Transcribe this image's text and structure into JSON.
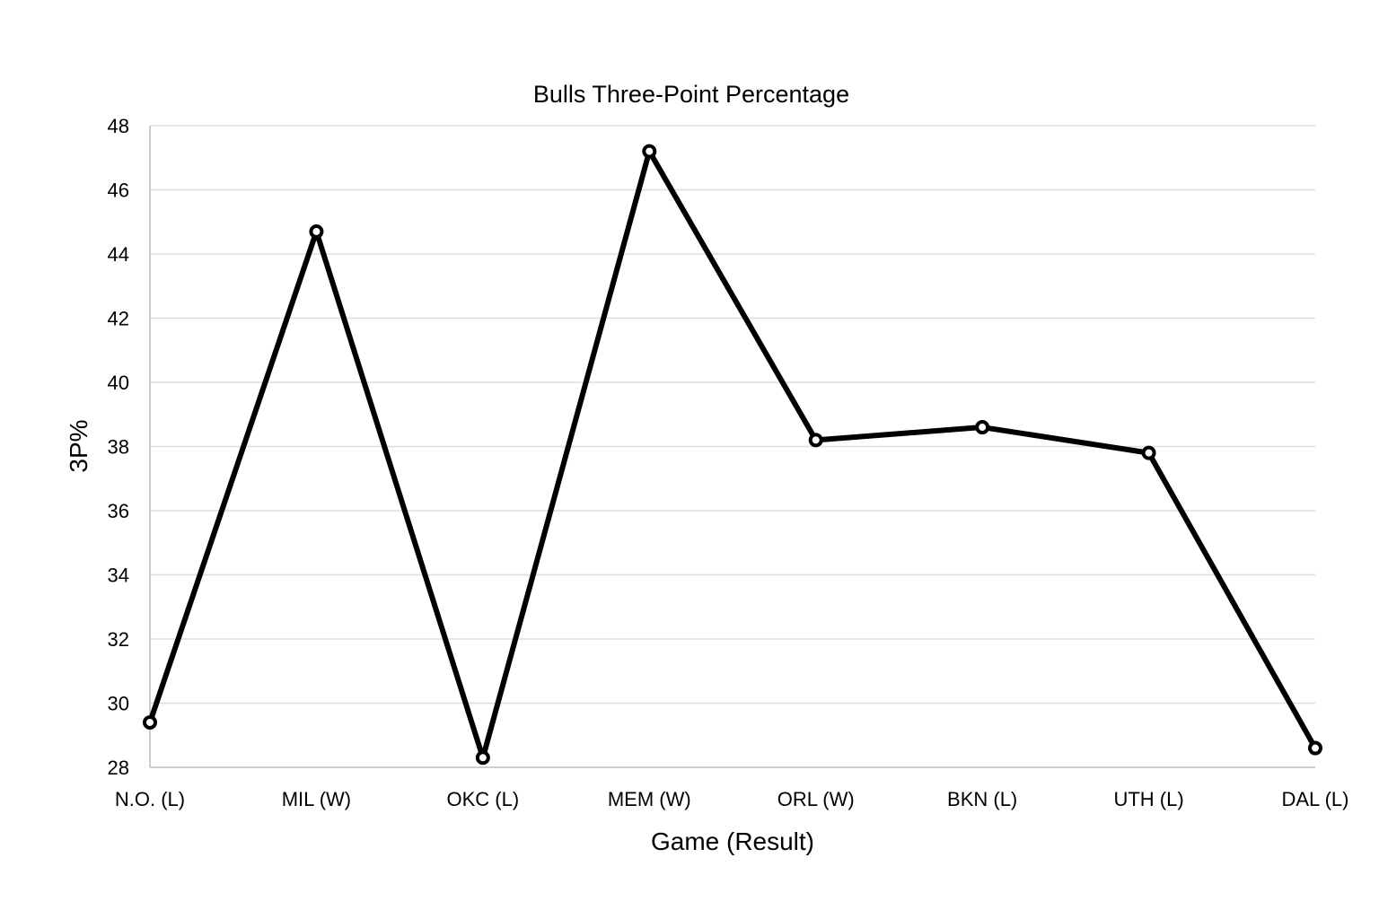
{
  "chart_data": {
    "type": "line",
    "title": "Bulls Three-Point Percentage",
    "xlabel": "Game (Result)",
    "ylabel": "3P%",
    "categories": [
      "N.O. (L)",
      "MIL (W)",
      "OKC (L)",
      "MEM (W)",
      "ORL (W)",
      "BKN (L)",
      "UTH (L)",
      "DAL (L)"
    ],
    "series": [
      {
        "values": [
          29.4,
          44.7,
          28.3,
          47.2,
          38.2,
          38.6,
          37.8,
          28.6
        ]
      }
    ],
    "ylim": [
      28,
      48
    ],
    "yticks": [
      28,
      30,
      32,
      34,
      36,
      38,
      40,
      42,
      44,
      46,
      48
    ],
    "grid": true,
    "legend": "none",
    "colors": {
      "line": "#000000",
      "marker_fill": "#ffffff",
      "grid": "#dddddd",
      "axis": "#bbbbbb"
    }
  }
}
